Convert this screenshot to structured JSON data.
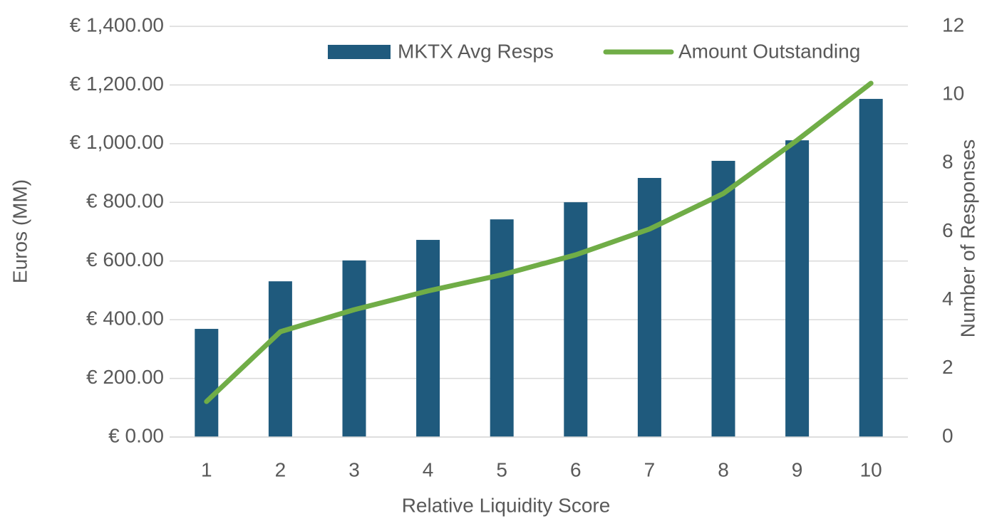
{
  "chart_data": {
    "type": "combo",
    "x_label": "Relative Liquidity Score",
    "y_label": "Euros (MM)",
    "y2_label": "Number of Responses",
    "categories": [
      "1",
      "2",
      "3",
      "4",
      "5",
      "6",
      "7",
      "8",
      "9",
      "10"
    ],
    "series": [
      {
        "name": "MKTX Avg Resps",
        "type": "bar",
        "axis": "y2",
        "color": "#1f5a7d",
        "values": [
          3.16,
          4.55,
          5.16,
          5.76,
          6.36,
          6.86,
          7.57,
          8.07,
          8.67,
          9.88
        ]
      },
      {
        "name": "Amount Outstanding",
        "type": "line",
        "color": "#70ad47",
        "values": [
          121,
          359,
          434,
          498,
          553,
          621,
          709,
          830,
          1012,
          1206
        ]
      }
    ],
    "ylim": [
      0,
      1400
    ],
    "yticks": [
      {
        "value": 0,
        "label": "€ 0.00"
      },
      {
        "value": 200,
        "label": "€ 200.00"
      },
      {
        "value": 400,
        "label": "€ 400.00"
      },
      {
        "value": 600,
        "label": "€ 600.00"
      },
      {
        "value": 800,
        "label": "€ 800.00"
      },
      {
        "value": 1000,
        "label": "€ 1,000.00"
      },
      {
        "value": 1200,
        "label": "€ 1,200.00"
      },
      {
        "value": 1400,
        "label": "€ 1,400.00"
      }
    ],
    "y2lim": [
      0,
      12
    ],
    "y2ticks": [
      0,
      2,
      4,
      6,
      8,
      10,
      12
    ],
    "grid": true,
    "legend": "top-right"
  }
}
